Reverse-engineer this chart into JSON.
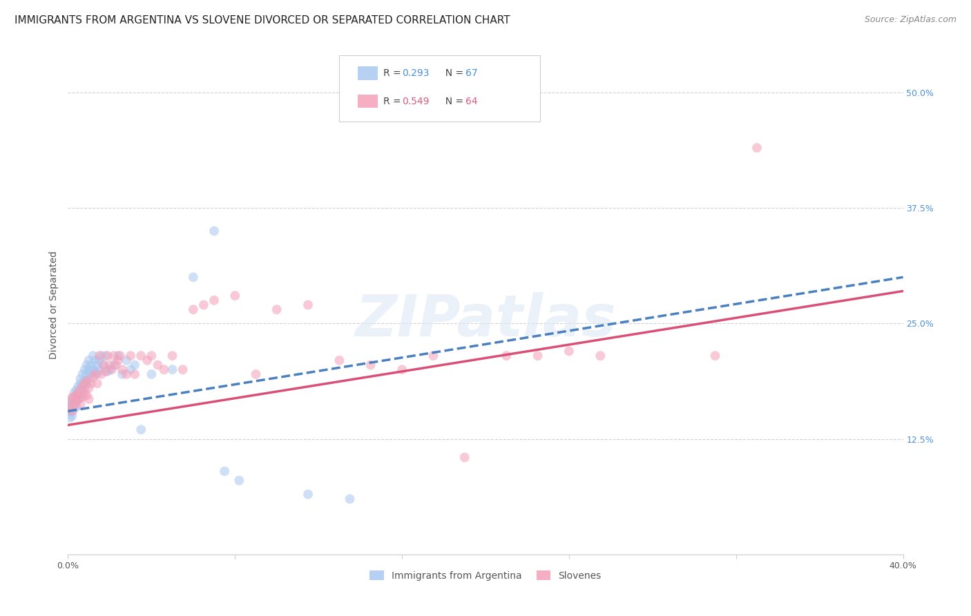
{
  "title": "IMMIGRANTS FROM ARGENTINA VS SLOVENE DIVORCED OR SEPARATED CORRELATION CHART",
  "source": "Source: ZipAtlas.com",
  "ylabel": "Divorced or Separated",
  "xlim": [
    0.0,
    0.4
  ],
  "ylim": [
    0.0,
    0.54
  ],
  "x_ticks": [
    0.0,
    0.08,
    0.16,
    0.24,
    0.32,
    0.4
  ],
  "y_ticks": [
    0.0,
    0.125,
    0.25,
    0.375,
    0.5
  ],
  "R_blue": 0.293,
  "N_blue": 67,
  "R_pink": 0.549,
  "N_pink": 64,
  "color_blue": "#a8c8f0",
  "color_pink": "#f4a0b8",
  "color_blue_text": "#4a90d9",
  "color_pink_text": "#e05a7a",
  "legend_label_blue": "Immigrants from Argentina",
  "legend_label_pink": "Slovenes",
  "watermark": "ZIPatlas",
  "blue_scatter_x": [
    0.001,
    0.001,
    0.001,
    0.001,
    0.002,
    0.002,
    0.002,
    0.002,
    0.002,
    0.003,
    0.003,
    0.003,
    0.003,
    0.004,
    0.004,
    0.004,
    0.004,
    0.005,
    0.005,
    0.005,
    0.005,
    0.006,
    0.006,
    0.006,
    0.006,
    0.007,
    0.007,
    0.007,
    0.008,
    0.008,
    0.008,
    0.009,
    0.009,
    0.009,
    0.01,
    0.01,
    0.01,
    0.011,
    0.011,
    0.012,
    0.012,
    0.013,
    0.013,
    0.014,
    0.014,
    0.015,
    0.015,
    0.016,
    0.017,
    0.018,
    0.019,
    0.02,
    0.022,
    0.024,
    0.026,
    0.028,
    0.03,
    0.032,
    0.035,
    0.04,
    0.05,
    0.06,
    0.07,
    0.075,
    0.082,
    0.115,
    0.135
  ],
  "blue_scatter_y": [
    0.155,
    0.16,
    0.148,
    0.162,
    0.157,
    0.163,
    0.15,
    0.168,
    0.155,
    0.165,
    0.17,
    0.158,
    0.175,
    0.172,
    0.165,
    0.178,
    0.16,
    0.175,
    0.168,
    0.182,
    0.172,
    0.178,
    0.185,
    0.17,
    0.19,
    0.183,
    0.195,
    0.175,
    0.188,
    0.2,
    0.18,
    0.205,
    0.195,
    0.185,
    0.2,
    0.21,
    0.19,
    0.205,
    0.195,
    0.215,
    0.2,
    0.21,
    0.198,
    0.205,
    0.195,
    0.21,
    0.2,
    0.215,
    0.205,
    0.215,
    0.198,
    0.2,
    0.205,
    0.215,
    0.195,
    0.21,
    0.2,
    0.205,
    0.135,
    0.195,
    0.2,
    0.3,
    0.35,
    0.09,
    0.08,
    0.065,
    0.06
  ],
  "pink_scatter_x": [
    0.001,
    0.001,
    0.002,
    0.002,
    0.003,
    0.003,
    0.004,
    0.004,
    0.005,
    0.005,
    0.006,
    0.006,
    0.007,
    0.007,
    0.008,
    0.008,
    0.009,
    0.009,
    0.01,
    0.01,
    0.011,
    0.012,
    0.013,
    0.014,
    0.015,
    0.016,
    0.017,
    0.018,
    0.019,
    0.02,
    0.021,
    0.022,
    0.023,
    0.024,
    0.025,
    0.026,
    0.028,
    0.03,
    0.032,
    0.035,
    0.038,
    0.04,
    0.043,
    0.046,
    0.05,
    0.055,
    0.06,
    0.065,
    0.07,
    0.08,
    0.09,
    0.1,
    0.115,
    0.13,
    0.145,
    0.16,
    0.175,
    0.19,
    0.21,
    0.225,
    0.24,
    0.255,
    0.31,
    0.33
  ],
  "pink_scatter_y": [
    0.158,
    0.165,
    0.155,
    0.17,
    0.162,
    0.17,
    0.165,
    0.172,
    0.168,
    0.175,
    0.162,
    0.178,
    0.17,
    0.182,
    0.175,
    0.185,
    0.172,
    0.188,
    0.168,
    0.18,
    0.185,
    0.192,
    0.195,
    0.185,
    0.215,
    0.195,
    0.205,
    0.198,
    0.215,
    0.205,
    0.2,
    0.215,
    0.205,
    0.21,
    0.215,
    0.2,
    0.195,
    0.215,
    0.195,
    0.215,
    0.21,
    0.215,
    0.205,
    0.2,
    0.215,
    0.2,
    0.265,
    0.27,
    0.275,
    0.28,
    0.195,
    0.265,
    0.27,
    0.21,
    0.205,
    0.2,
    0.215,
    0.105,
    0.215,
    0.215,
    0.22,
    0.215,
    0.215,
    0.44
  ],
  "blue_line_x": [
    0.0,
    0.4
  ],
  "blue_line_y": [
    0.155,
    0.3
  ],
  "pink_line_x": [
    0.0,
    0.4
  ],
  "pink_line_y": [
    0.14,
    0.285
  ],
  "bg_color": "#ffffff",
  "grid_color": "#cccccc",
  "title_fontsize": 11,
  "source_fontsize": 9,
  "axis_label_fontsize": 10,
  "tick_fontsize": 9,
  "scatter_size": 100,
  "scatter_alpha": 0.55,
  "line_width": 2.5
}
